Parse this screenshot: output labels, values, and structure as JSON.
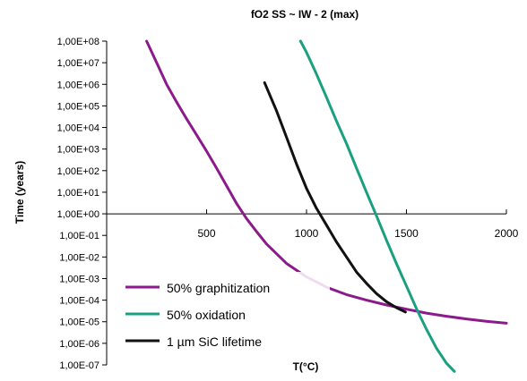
{
  "chart_data": {
    "type": "line",
    "title": "fO2 SS ~ IW - 2 (max)",
    "xlabel": "T(°C)",
    "ylabel": "Time (years)",
    "x_scale": "linear",
    "y_scale": "log",
    "xlim": [
      0,
      2000
    ],
    "ylim": [
      1e-07,
      100000000.0
    ],
    "x_tick_values": [
      500,
      1000,
      1500,
      2000
    ],
    "x_tick_labels": [
      "500",
      "1000",
      "1500",
      "2000"
    ],
    "y_tick_values": [
      100000000.0,
      10000000.0,
      1000000.0,
      100000.0,
      10000.0,
      1000.0,
      100.0,
      10.0,
      1.0,
      0.1,
      0.01,
      0.001,
      0.0001,
      1e-05,
      1e-06,
      1e-07
    ],
    "y_tick_labels": [
      "1,00E+08",
      "1,00E+07",
      "1,00E+06",
      "1,00E+05",
      "1,00E+04",
      "1,00E+03",
      "1,00E+02",
      "1,00E+01",
      "1,00E+00",
      "1,00E-01",
      "1,00E-02",
      "1,00E-03",
      "1,00E-04",
      "1,00E-05",
      "1,00E-06",
      "1,00E-07"
    ],
    "x_axis_crosses_y": 1,
    "grid": false,
    "legend_position": "bottom-left",
    "series": [
      {
        "name": "50% graphitization",
        "color": "#8b1a8b",
        "points": [
          [
            200,
            100000000.0
          ],
          [
            250,
            10000000.0
          ],
          [
            300,
            1000000.0
          ],
          [
            350,
            150000.0
          ],
          [
            400,
            25000.0
          ],
          [
            450,
            4500.0
          ],
          [
            500,
            800
          ],
          [
            550,
            130
          ],
          [
            600,
            20
          ],
          [
            650,
            3
          ],
          [
            700,
            0.6
          ],
          [
            750,
            0.15
          ],
          [
            800,
            0.04
          ],
          [
            900,
            0.005
          ],
          [
            1000,
            0.0012
          ],
          [
            1100,
            0.0004
          ],
          [
            1200,
            0.00018
          ],
          [
            1300,
            0.0001
          ],
          [
            1400,
            6e-05
          ],
          [
            1500,
            3.8e-05
          ],
          [
            1600,
            2.5e-05
          ],
          [
            1700,
            1.8e-05
          ],
          [
            1800,
            1.35e-05
          ],
          [
            1900,
            1.05e-05
          ],
          [
            2000,
            8.5e-06
          ]
        ]
      },
      {
        "name": "50% oxidation",
        "color": "#1aa081",
        "points": [
          [
            970,
            100000000.0
          ],
          [
            1000,
            30000000.0
          ],
          [
            1050,
            3000000.0
          ],
          [
            1100,
            250000.0
          ],
          [
            1150,
            20000.0
          ],
          [
            1200,
            1800
          ],
          [
            1250,
            130
          ],
          [
            1300,
            10
          ],
          [
            1350,
            0.8
          ],
          [
            1400,
            0.06
          ],
          [
            1450,
            0.005
          ],
          [
            1500,
            0.00045
          ],
          [
            1550,
            4e-05
          ],
          [
            1600,
            4.5e-06
          ],
          [
            1650,
            6e-07
          ],
          [
            1700,
            1.2e-07
          ],
          [
            1740,
            5e-08
          ]
        ]
      },
      {
        "name": "1 µm SiC lifetime",
        "color": "#111111",
        "points": [
          [
            790,
            1200000.0
          ],
          [
            850,
            60000.0
          ],
          [
            900,
            3500.0
          ],
          [
            950,
            200
          ],
          [
            1000,
            15
          ],
          [
            1050,
            1.8
          ],
          [
            1100,
            0.3
          ],
          [
            1150,
            0.05
          ],
          [
            1200,
            0.01
          ],
          [
            1250,
            0.002
          ],
          [
            1300,
            0.0006
          ],
          [
            1350,
            0.0002
          ],
          [
            1400,
            8.5e-05
          ],
          [
            1450,
            4.5e-05
          ],
          [
            1495,
            2.8e-05
          ]
        ]
      }
    ]
  }
}
